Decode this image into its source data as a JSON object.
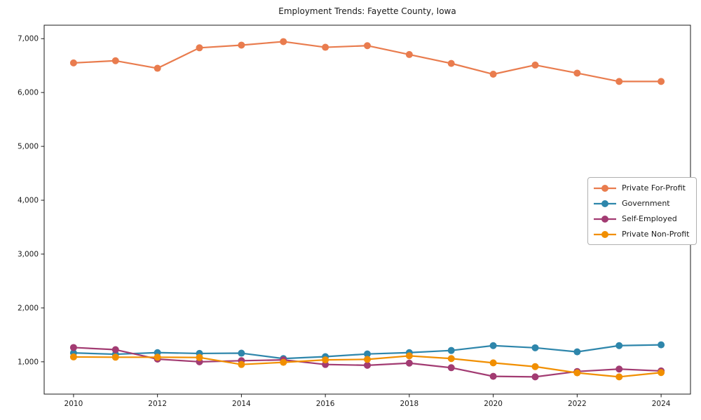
{
  "figure": {
    "background": "#ffffff",
    "axis_color": "#1a1a1a"
  },
  "chart_data": {
    "type": "line",
    "title": "Employment Trends: Fayette County, Iowa",
    "xlabel": "",
    "ylabel": "",
    "x": [
      2010,
      2011,
      2012,
      2013,
      2014,
      2015,
      2016,
      2017,
      2018,
      2019,
      2020,
      2021,
      2022,
      2023,
      2024
    ],
    "series": [
      {
        "name": "Private For-Profit",
        "color": "#E97C4E",
        "values": [
          6550,
          6590,
          6450,
          6830,
          6880,
          6945,
          6840,
          6870,
          6705,
          6540,
          6340,
          6510,
          6360,
          6205,
          6205
        ]
      },
      {
        "name": "Government",
        "color": "#2E86AB",
        "values": [
          1165,
          1140,
          1170,
          1155,
          1160,
          1060,
          1095,
          1145,
          1170,
          1210,
          1300,
          1260,
          1185,
          1300,
          1315
        ]
      },
      {
        "name": "Self-Employed",
        "color": "#A23B72",
        "values": [
          1265,
          1225,
          1050,
          1000,
          1020,
          1035,
          950,
          935,
          975,
          890,
          730,
          720,
          820,
          865,
          830
        ]
      },
      {
        "name": "Private Non-Profit",
        "color": "#F18F01",
        "values": [
          1090,
          1085,
          1085,
          1080,
          950,
          990,
          1035,
          1045,
          1110,
          1060,
          980,
          910,
          795,
          720,
          800
        ]
      }
    ],
    "xticks": {
      "values": [
        2010,
        2012,
        2014,
        2016,
        2018,
        2020,
        2022,
        2024
      ],
      "labels": [
        "2010",
        "2012",
        "2014",
        "2016",
        "2018",
        "2020",
        "2022",
        "2024"
      ]
    },
    "yticks": {
      "values": [
        1000,
        2000,
        3000,
        4000,
        5000,
        6000,
        7000
      ],
      "labels": [
        "1,000",
        "2,000",
        "3,000",
        "4,000",
        "5,000",
        "6,000",
        "7,000"
      ]
    },
    "xlim": [
      2009.3,
      2024.7
    ],
    "ylim": [
      400,
      7250
    ],
    "grid": false,
    "legend_position": "center right"
  }
}
